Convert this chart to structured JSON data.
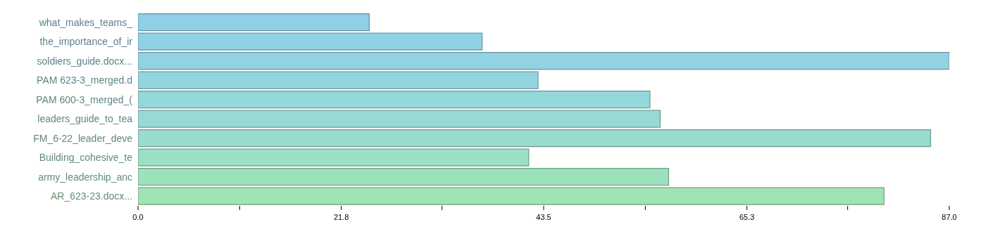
{
  "chart_data": {
    "type": "bar",
    "orientation": "horizontal",
    "categories": [
      "what_makes_teams_",
      "the_importance_of_ir",
      "soldiers_guide.docx...",
      "PAM 623-3_merged.d",
      "PAM 600-3_merged_(",
      "leaders_guide_to_tea",
      "FM_6-22_leader_deve",
      "Building_cohesive_te",
      "army_leadership_anc",
      "AR_623-23.docx..."
    ],
    "values": [
      24.8,
      36.9,
      87.0,
      42.9,
      54.9,
      56.0,
      85.0,
      41.9,
      56.9,
      80.0
    ],
    "colors": [
      "#8fcfe8",
      "#90d1e6",
      "#92d3e3",
      "#93d5df",
      "#95d8da",
      "#97dad5",
      "#99dccf",
      "#9bdfc6",
      "#9de1bc",
      "#a0e4b4"
    ],
    "xlim": [
      0,
      87.0
    ],
    "xticks": [
      {
        "value": 0,
        "label": "0.0"
      },
      {
        "value": 10.9,
        "label": null
      },
      {
        "value": 21.8,
        "label": "21.8"
      },
      {
        "value": 32.6,
        "label": null
      },
      {
        "value": 43.5,
        "label": "43.5"
      },
      {
        "value": 54.4,
        "label": null
      },
      {
        "value": 65.3,
        "label": "65.3"
      },
      {
        "value": 76.1,
        "label": null
      },
      {
        "value": 87.0,
        "label": "87.0"
      }
    ],
    "grid": false,
    "legend": false
  }
}
